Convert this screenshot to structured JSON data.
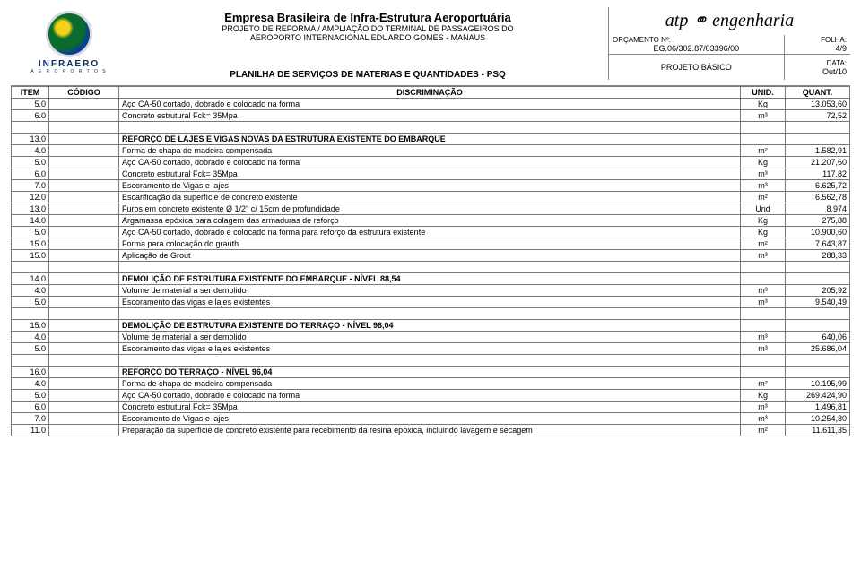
{
  "header": {
    "company_title": "Empresa Brasileira de Infra-Estrutura Aeroportuária",
    "project_line1": "PROJETO DE REFORMA / AMPLIAÇÃO DO TERMINAL DE PASSAGEIROS DO",
    "project_line2": "AEROPORTO INTERNACIONAL EDUARDO GOMES - MANAUS",
    "logo_name": "INFRAERO",
    "logo_sub": "A E R O P O R T O S",
    "atp_brand_1": "atp",
    "atp_brand_2": "engenharia",
    "orc_label": "ORÇAMENTO Nº:",
    "orc_value": "EG.06/302.87/03396/00",
    "folha_label": "FOLHA:",
    "folha_value": "4/9",
    "proj_label": "PROJETO BÁSICO",
    "data_label": "DATA:",
    "data_value": "Out/10",
    "subtitle": "PLANILHA DE SERVIÇOS DE MATERIAS E QUANTIDADES - PSQ"
  },
  "columns": {
    "item": "ITEM",
    "codigo": "CÓDIGO",
    "discriminacao": "DISCRIMINAÇÃO",
    "unid": "UNID.",
    "quant": "QUANT."
  },
  "rows": [
    {
      "item": "5.0",
      "disc": "Aço CA-50 cortado, dobrado e colocado na forma",
      "unid": "Kg",
      "quant": "13.053,60"
    },
    {
      "item": "6.0",
      "disc": "Concreto estrutural Fck= 35Mpa",
      "unid": "m³",
      "quant": "72,52"
    },
    {
      "blank": true
    },
    {
      "item": "13.0",
      "disc": "REFORÇO DE LAJES E VIGAS NOVAS DA ESTRUTURA EXISTENTE DO EMBARQUE",
      "bold": true
    },
    {
      "item": "4.0",
      "disc": "Forma de chapa de madeira compensada",
      "unid": "m²",
      "quant": "1.582,91"
    },
    {
      "item": "5.0",
      "disc": "Aço CA-50 cortado, dobrado e colocado na forma",
      "unid": "Kg",
      "quant": "21.207,60"
    },
    {
      "item": "6.0",
      "disc": "Concreto estrutural Fck= 35Mpa",
      "unid": "m³",
      "quant": "117,82"
    },
    {
      "item": "7.0",
      "disc": "Escoramento de Vigas e lajes",
      "unid": "m³",
      "quant": "6.625,72"
    },
    {
      "item": "12.0",
      "disc": "Escarificação da superfície de concreto existente",
      "unid": "m²",
      "quant": "6.562,78"
    },
    {
      "item": "13.0",
      "disc": "Furos em concreto existente Ø 1/2\" c/ 15cm de profundidade",
      "unid": "Und",
      "quant": "8.974"
    },
    {
      "item": "14.0",
      "disc": "Argamassa epóxica para colagem das armaduras de reforço",
      "unid": "Kg",
      "quant": "275,88"
    },
    {
      "item": "5.0",
      "disc": "Aço CA-50 cortado, dobrado e colocado na forma para reforço da estrutura existente",
      "unid": "Kg",
      "quant": "10.900,60"
    },
    {
      "item": "15.0",
      "disc": "Forma para colocação do grauth",
      "unid": "m²",
      "quant": "7.643,87"
    },
    {
      "item": "15.0",
      "disc": "Aplicação de Grout",
      "unid": "m³",
      "quant": "288,33"
    },
    {
      "blank": true
    },
    {
      "item": "14.0",
      "disc": "DEMOLIÇÃO DE ESTRUTURA EXISTENTE DO EMBARQUE - NÍVEL 88,54",
      "bold": true
    },
    {
      "item": "4.0",
      "disc": "Volume de material a ser demolido",
      "unid": "m³",
      "quant": "205,92"
    },
    {
      "item": "5.0",
      "disc": "Escoramento das vigas e lajes existentes",
      "unid": "m³",
      "quant": "9.540,49"
    },
    {
      "blank": true
    },
    {
      "item": "15.0",
      "disc": "DEMOLIÇÃO DE ESTRUTURA EXISTENTE DO TERRAÇO - NÍVEL 96,04",
      "bold": true
    },
    {
      "item": "4.0",
      "disc": "Volume de material a ser demolido",
      "unid": "m³",
      "quant": "640,06"
    },
    {
      "item": "5.0",
      "disc": "Escoramento das vigas e lajes existentes",
      "unid": "m³",
      "quant": "25.686,04"
    },
    {
      "blank": true
    },
    {
      "item": "16.0",
      "disc": "REFORÇO DO TERRAÇO - NÍVEL 96,04",
      "bold": true
    },
    {
      "item": "4.0",
      "disc": "Forma de chapa de madeira compensada",
      "unid": "m²",
      "quant": "10.195,99"
    },
    {
      "item": "5.0",
      "disc": "Aço CA-50 cortado, dobrado e colocado na forma",
      "unid": "Kg",
      "quant": "269.424,90"
    },
    {
      "item": "6.0",
      "disc": "Concreto estrutural Fck= 35Mpa",
      "unid": "m³",
      "quant": "1.496,81"
    },
    {
      "item": "7.0",
      "disc": "Escoramento de Vigas e lajes",
      "unid": "m³",
      "quant": "10.254,80"
    },
    {
      "item": "11.0",
      "disc": "Preparação da superfície de concreto existente para recebimento da resina epoxica, incluindo lavagem e secagem",
      "unid": "m²",
      "quant": "11.611,35"
    }
  ],
  "style": {
    "border_color": "#777777",
    "text_color": "#000000",
    "background": "#ffffff"
  }
}
